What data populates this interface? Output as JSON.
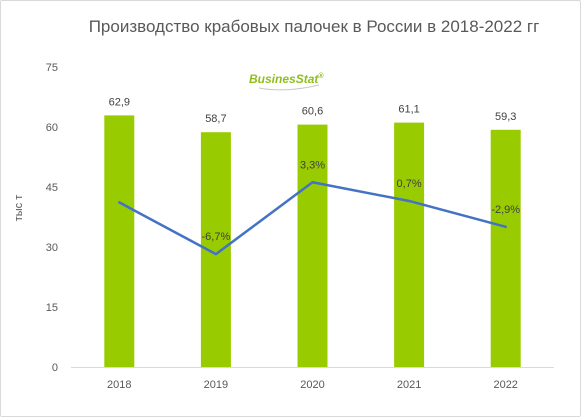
{
  "chart_data": {
    "type": "bar",
    "title": "Производство крабовых палочек в России в 2018-2022 гг",
    "ylabel": "тыс т",
    "categories": [
      "2018",
      "2019",
      "2020",
      "2021",
      "2022"
    ],
    "ylim": [
      0,
      75
    ],
    "yticks": [
      0,
      15,
      30,
      45,
      60,
      75
    ],
    "grid": false,
    "legend": "none",
    "series": [
      {
        "type": "bar",
        "values": [
          62.9,
          58.7,
          60.6,
          61.1,
          59.3
        ],
        "labels": [
          "62,9",
          "58,7",
          "60,6",
          "61,1",
          "59,3"
        ],
        "color": "#99cc00"
      },
      {
        "type": "line",
        "values": [
          null,
          -6.7,
          3.3,
          0.7,
          -2.9
        ],
        "labels": [
          "",
          "-6,7%",
          "3,3%",
          "0,7%",
          "-2,9%"
        ],
        "color": "#4472c4",
        "secondary_axis": true
      }
    ]
  },
  "logo": {
    "text_main": "Busines",
    "text_accent": "Stat",
    "mark": "®",
    "color_main": "#8fbf1f",
    "color_accent": "#8fbf1f"
  }
}
